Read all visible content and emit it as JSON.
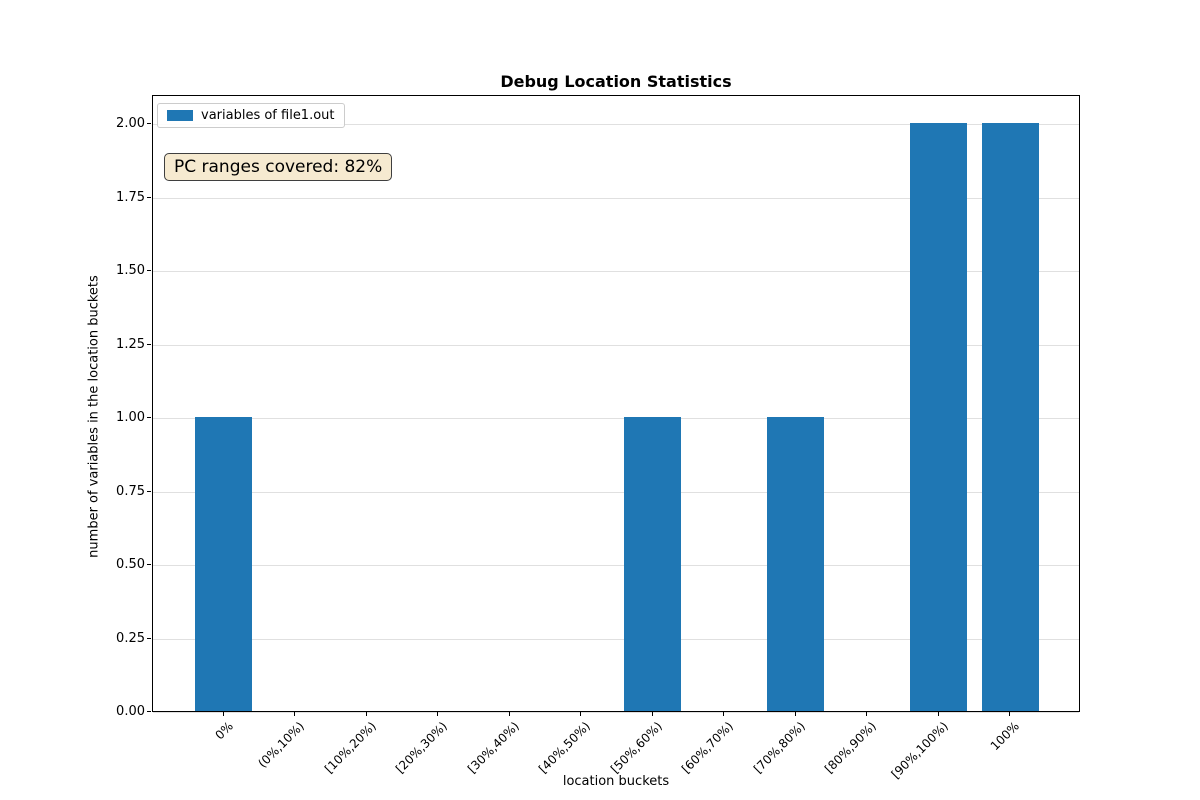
{
  "chart_data": {
    "type": "bar",
    "title": "Debug Location Statistics",
    "xlabel": "location buckets",
    "ylabel": "number of variables in the location buckets",
    "categories": [
      "0%",
      "(0%,10%)",
      "[10%,20%)",
      "[20%,30%)",
      "[30%,40%)",
      "[40%,50%)",
      "[50%,60%)",
      "[60%,70%)",
      "[70%,80%)",
      "[80%,90%)",
      "[90%,100%)",
      "100%"
    ],
    "series": [
      {
        "name": "variables of file1.out",
        "values": [
          1,
          0,
          0,
          0,
          0,
          0,
          1,
          0,
          1,
          0,
          2,
          2
        ]
      }
    ],
    "ylim": [
      0,
      2.1
    ],
    "yticks": [
      0,
      0.25,
      0.5,
      0.75,
      1.0,
      1.25,
      1.5,
      1.75,
      2.0
    ],
    "ytick_labels": [
      "0.00",
      "0.25",
      "0.50",
      "0.75",
      "1.00",
      "1.25",
      "1.50",
      "1.75",
      "2.00"
    ],
    "grid": true,
    "legend_position": "upper left",
    "bar_color": "#1f77b4",
    "grid_color": "#e0e0e0",
    "annotation": {
      "text": "PC ranges covered: 82%",
      "bg": "#f6ead0",
      "border": "#3f3f3f"
    }
  }
}
